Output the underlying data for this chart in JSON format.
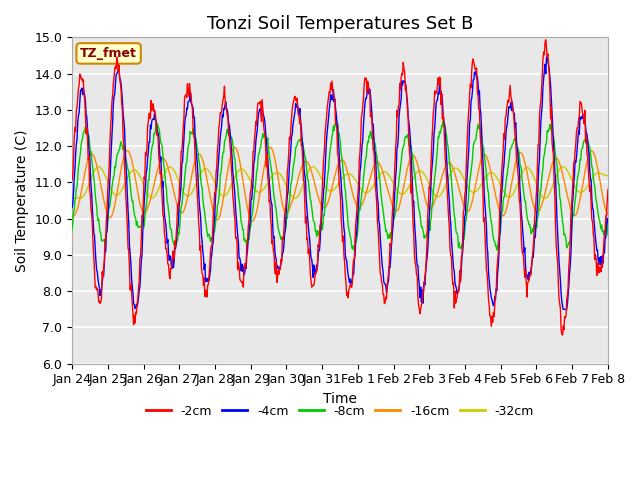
{
  "title": "Tonzi Soil Temperatures Set B",
  "xlabel": "Time",
  "ylabel": "Soil Temperature (C)",
  "ylim": [
    6.0,
    15.0
  ],
  "yticks": [
    6.0,
    7.0,
    8.0,
    9.0,
    10.0,
    11.0,
    12.0,
    13.0,
    14.0,
    15.0
  ],
  "xtick_labels": [
    "Jan 24",
    "Jan 25",
    "Jan 26",
    "Jan 27",
    "Jan 28",
    "Jan 29",
    "Jan 30",
    "Jan 31",
    "Feb 1",
    "Feb 2",
    "Feb 3",
    "Feb 4",
    "Feb 5",
    "Feb 6",
    "Feb 7",
    "Feb 8"
  ],
  "series_colors": [
    "#ff0000",
    "#0000ff",
    "#00cc00",
    "#ff8800",
    "#cccc00"
  ],
  "series_labels": [
    "-2cm",
    "-4cm",
    "-8cm",
    "-16cm",
    "-32cm"
  ],
  "legend_label": "TZ_fmet",
  "legend_box_color": "#ffffcc",
  "legend_box_edge": "#cc8800",
  "plot_bg_color": "#e8e8e8",
  "grid_color": "#ffffff",
  "title_fontsize": 13,
  "axis_label_fontsize": 10,
  "tick_fontsize": 9
}
